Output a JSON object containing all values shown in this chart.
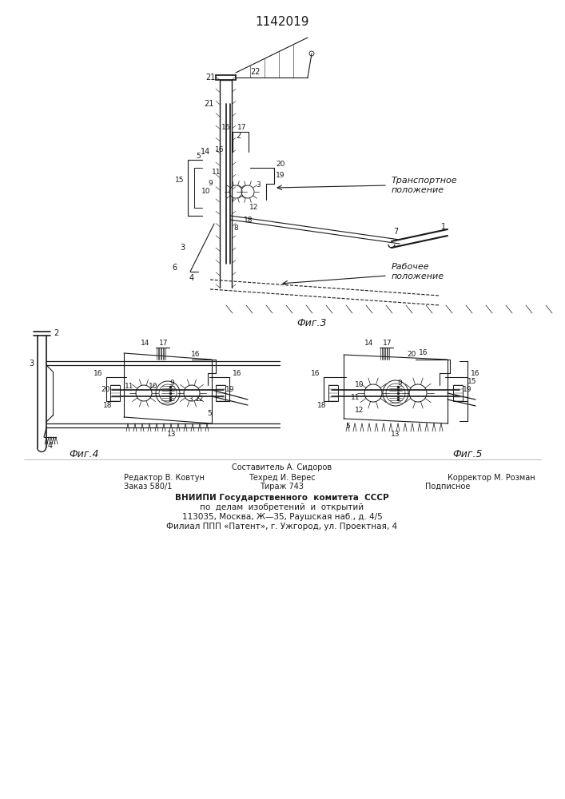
{
  "title": "1142019",
  "background_color": "#ffffff",
  "fig_label1": "Фиг.3",
  "fig_label2": "Фиг.4",
  "fig_label3": "Фиг.5",
  "transport_label": "Транспортное\nположение",
  "work_label": "Рабочее\nположение",
  "footer_line1": "Составитель А. Сидоров",
  "footer_line2_left": "Редактор В. Ковтун",
  "footer_line2_mid": "Техред И. Верес",
  "footer_line2_right": "Корректор М. Розман",
  "footer_line3_left": "Заказ 580/1",
  "footer_line3_mid": "Тираж 743",
  "footer_line3_right": "Подписное",
  "footer_line4": "ВНИИПИ Государственного  комитета  СССР",
  "footer_line5": "по  делам  изобретений  и  открытий",
  "footer_line6": "113035, Москва, Ж—35, Раушская наб., д. 4/5",
  "footer_line7": "Филиал ППП «Патент», г. Ужгород, ул. Проектная, 4"
}
